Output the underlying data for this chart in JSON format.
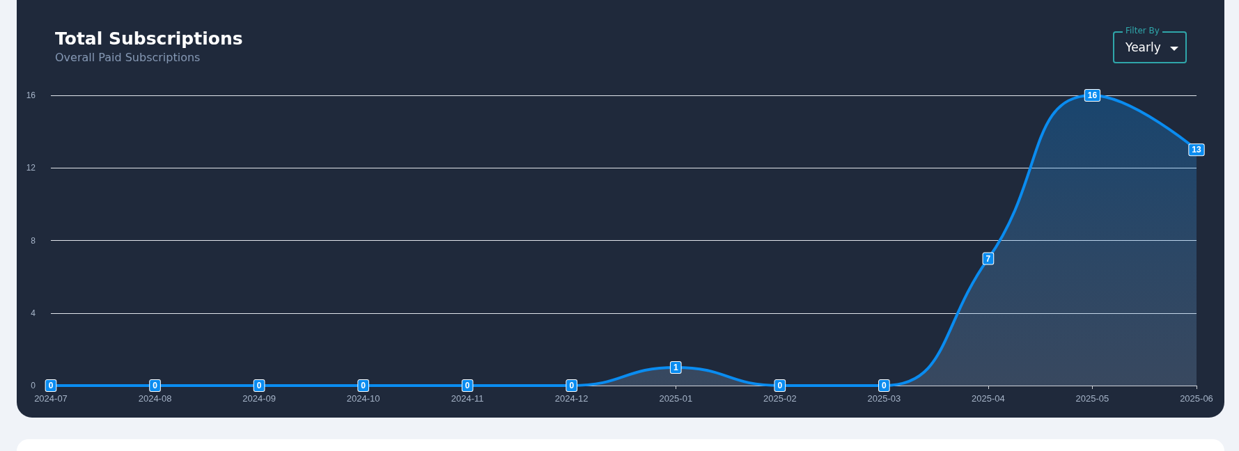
{
  "chart_data": {
    "type": "area",
    "title": "Total Subscriptions",
    "subtitle": "Overall Paid Subscriptions",
    "annotations": [
      "Filter By",
      "Yearly"
    ],
    "categories": [
      "2024-07",
      "2024-08",
      "2024-09",
      "2024-10",
      "2024-11",
      "2024-12",
      "2025-01",
      "2025-02",
      "2025-03",
      "2025-04",
      "2025-05",
      "2025-06"
    ],
    "series": [
      {
        "color": "#0a8cf0",
        "values": [
          0,
          0,
          0,
          0,
          0,
          0,
          1,
          0,
          0,
          7,
          16,
          13
        ]
      }
    ],
    "ylim": [
      0,
      16
    ],
    "yticks": [
      0,
      4,
      8,
      12,
      16
    ],
    "grid": "y",
    "data_labels": true
  }
}
